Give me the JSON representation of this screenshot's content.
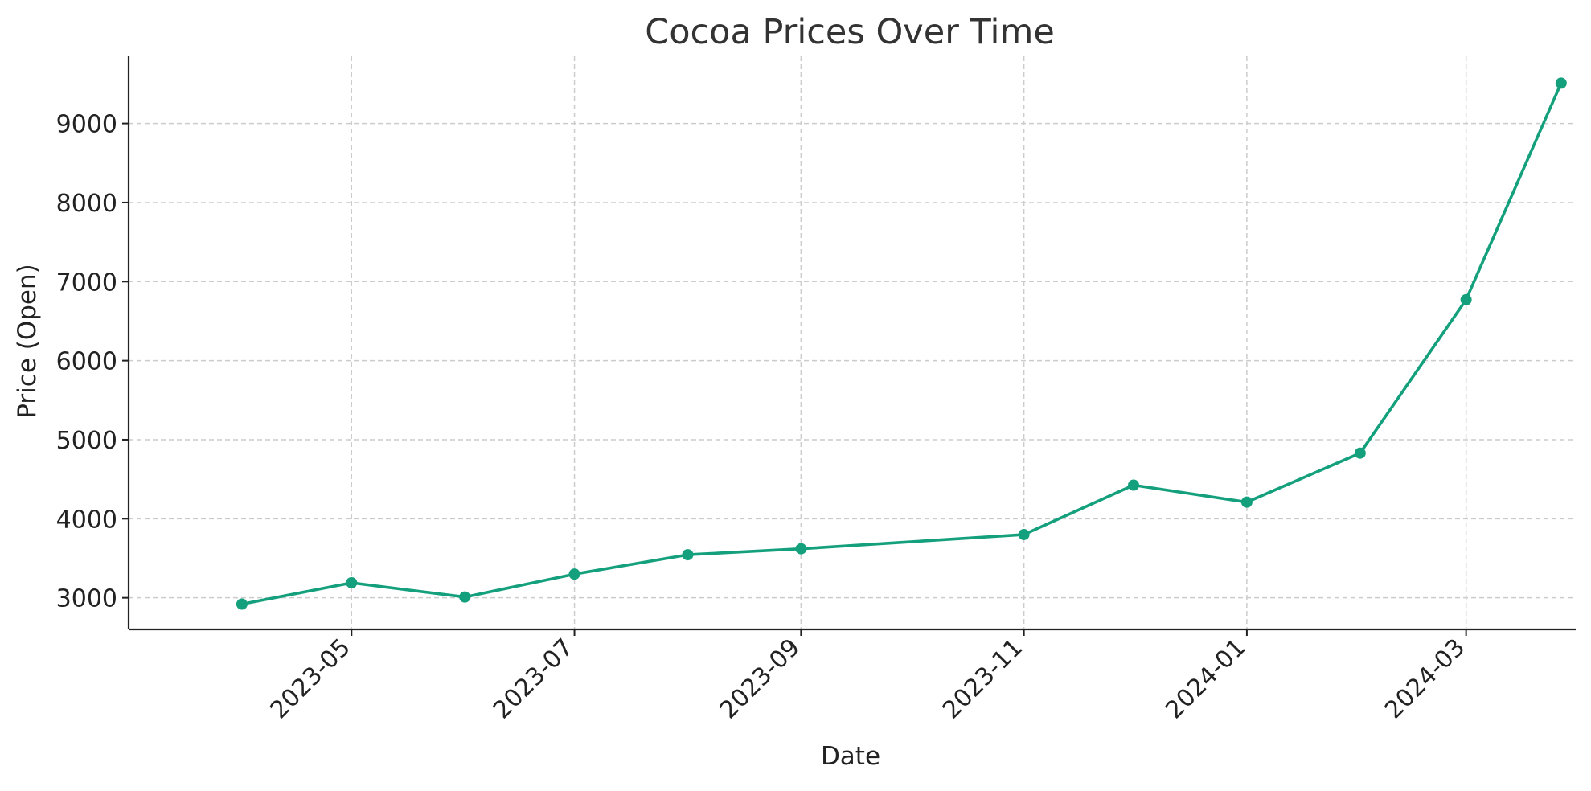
{
  "chart_data": {
    "type": "line",
    "title": "Cocoa Prices Over Time",
    "xlabel": "Date",
    "ylabel": "Price (Open)",
    "x_axis_type": "date",
    "xlim": [
      "2023-03-01",
      "2024-03-31"
    ],
    "ylim": [
      2600,
      9850
    ],
    "x_ticks": [
      "2023-05",
      "2023-07",
      "2023-09",
      "2023-11",
      "2024-01",
      "2024-03"
    ],
    "y_ticks": [
      3000,
      4000,
      5000,
      6000,
      7000,
      8000,
      9000
    ],
    "grid": true,
    "series": [
      {
        "color": "#14a07c",
        "marker": "circle",
        "points": [
          {
            "x": "2023-04-01",
            "y": 2920
          },
          {
            "x": "2023-05-01",
            "y": 3190
          },
          {
            "x": "2023-06-01",
            "y": 3010
          },
          {
            "x": "2023-07-01",
            "y": 3300
          },
          {
            "x": "2023-08-01",
            "y": 3545
          },
          {
            "x": "2023-09-01",
            "y": 3620
          },
          {
            "x": "2023-11-01",
            "y": 3800
          },
          {
            "x": "2023-12-01",
            "y": 4425
          },
          {
            "x": "2024-01-01",
            "y": 4210
          },
          {
            "x": "2024-02-01",
            "y": 4830
          },
          {
            "x": "2024-03-01",
            "y": 6770
          },
          {
            "x": "2024-03-27",
            "y": 9510
          }
        ]
      }
    ]
  }
}
